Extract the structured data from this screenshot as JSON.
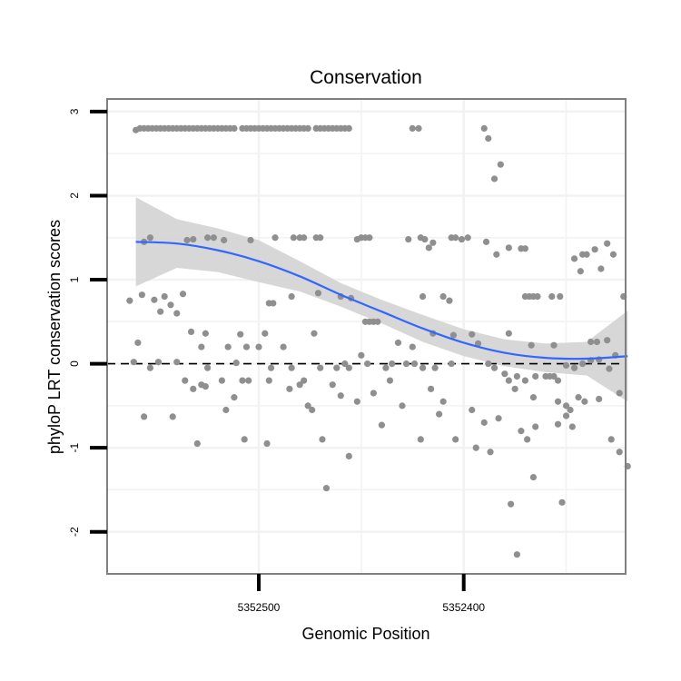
{
  "chart_data": {
    "type": "scatter",
    "title": "Conservation",
    "xlabel": "Genomic Position",
    "ylabel": "phyloP LRT conservation scores",
    "x_reversed": true,
    "xlim": [
      5352574,
      5352321
    ],
    "ylim": [
      -2.5,
      3.15
    ],
    "x_ticks": [
      {
        "value": 5352500,
        "label": "5352500"
      },
      {
        "value": 5352400,
        "label": "5352400"
      }
    ],
    "x_minor_ticks": [
      5352450,
      5352350
    ],
    "y_ticks": [
      {
        "value": 3,
        "label": "3"
      },
      {
        "value": 2,
        "label": "2"
      },
      {
        "value": 1,
        "label": "1"
      },
      {
        "value": 0,
        "label": "0"
      },
      {
        "value": -1,
        "label": "-1"
      },
      {
        "value": -2,
        "label": "-2"
      }
    ],
    "y_minor_ticks": [
      2.5,
      1.5,
      0.5,
      -0.5,
      -1.5
    ],
    "reference_line": {
      "y": 0,
      "style": "dashed",
      "color": "#000000"
    },
    "grid": true,
    "colors": {
      "points": "#8f8f8f",
      "smooth_line": "#3366ff",
      "ribbon": "#d3d3d3",
      "reference": "#000000",
      "panel_border": "#7f7f7f",
      "grid": "#f2f2f2"
    },
    "series": [
      {
        "type": "scatter",
        "points": [
          [
            5352560,
            2.78
          ],
          [
            5352558,
            2.8
          ],
          [
            5352556,
            2.8
          ],
          [
            5352554,
            2.8
          ],
          [
            5352552,
            2.8
          ],
          [
            5352550,
            2.8
          ],
          [
            5352548,
            2.8
          ],
          [
            5352546,
            2.8
          ],
          [
            5352544,
            2.8
          ],
          [
            5352542,
            2.8
          ],
          [
            5352540,
            2.8
          ],
          [
            5352538,
            2.8
          ],
          [
            5352536,
            2.8
          ],
          [
            5352534,
            2.8
          ],
          [
            5352532,
            2.8
          ],
          [
            5352530,
            2.8
          ],
          [
            5352528,
            2.8
          ],
          [
            5352526,
            2.8
          ],
          [
            5352524,
            2.8
          ],
          [
            5352522,
            2.8
          ],
          [
            5352520,
            2.8
          ],
          [
            5352518,
            2.8
          ],
          [
            5352516,
            2.8
          ],
          [
            5352514,
            2.8
          ],
          [
            5352512,
            2.8
          ],
          [
            5352508,
            2.8
          ],
          [
            5352506,
            2.8
          ],
          [
            5352504,
            2.8
          ],
          [
            5352502,
            2.8
          ],
          [
            5352500,
            2.8
          ],
          [
            5352498,
            2.8
          ],
          [
            5352496,
            2.8
          ],
          [
            5352494,
            2.8
          ],
          [
            5352492,
            2.8
          ],
          [
            5352490,
            2.8
          ],
          [
            5352488,
            2.8
          ],
          [
            5352486,
            2.8
          ],
          [
            5352484,
            2.8
          ],
          [
            5352482,
            2.8
          ],
          [
            5352480,
            2.8
          ],
          [
            5352478,
            2.8
          ],
          [
            5352476,
            2.8
          ],
          [
            5352472,
            2.8
          ],
          [
            5352470,
            2.8
          ],
          [
            5352468,
            2.8
          ],
          [
            5352466,
            2.8
          ],
          [
            5352464,
            2.8
          ],
          [
            5352462,
            2.8
          ],
          [
            5352460,
            2.8
          ],
          [
            5352458,
            2.8
          ],
          [
            5352456,
            2.8
          ],
          [
            5352425,
            2.8
          ],
          [
            5352422,
            2.8
          ],
          [
            5352390,
            2.8
          ],
          [
            5352388,
            2.68
          ],
          [
            5352385,
            2.2
          ],
          [
            5352382,
            2.37
          ],
          [
            5352556,
            1.45
          ],
          [
            5352553,
            1.5
          ],
          [
            5352535,
            1.47
          ],
          [
            5352532,
            1.48
          ],
          [
            5352525,
            1.5
          ],
          [
            5352522,
            1.5
          ],
          [
            5352517,
            1.47
          ],
          [
            5352504,
            1.47
          ],
          [
            5352492,
            1.5
          ],
          [
            5352483,
            1.5
          ],
          [
            5352480,
            1.5
          ],
          [
            5352478,
            1.5
          ],
          [
            5352472,
            1.5
          ],
          [
            5352470,
            1.5
          ],
          [
            5352452,
            1.48
          ],
          [
            5352450,
            1.5
          ],
          [
            5352448,
            1.5
          ],
          [
            5352446,
            1.5
          ],
          [
            5352427,
            1.48
          ],
          [
            5352421,
            1.5
          ],
          [
            5352419,
            1.48
          ],
          [
            5352417,
            1.38
          ],
          [
            5352415,
            1.44
          ],
          [
            5352406,
            1.5
          ],
          [
            5352404,
            1.5
          ],
          [
            5352401,
            1.48
          ],
          [
            5352398,
            1.5
          ],
          [
            5352389,
            1.45
          ],
          [
            5352384,
            1.3
          ],
          [
            5352378,
            1.38
          ],
          [
            5352372,
            1.37
          ],
          [
            5352370,
            1.37
          ],
          [
            5352342,
            1.3
          ],
          [
            5352340,
            1.3
          ],
          [
            5352346,
            1.25
          ],
          [
            5352336,
            1.36
          ],
          [
            5352330,
            1.43
          ],
          [
            5352327,
            1.3
          ],
          [
            5352563,
            0.75
          ],
          [
            5352557,
            0.82
          ],
          [
            5352551,
            0.76
          ],
          [
            5352548,
            0.62
          ],
          [
            5352546,
            0.8
          ],
          [
            5352543,
            0.7
          ],
          [
            5352540,
            0.6
          ],
          [
            5352537,
            0.83
          ],
          [
            5352495,
            0.72
          ],
          [
            5352493,
            0.72
          ],
          [
            5352484,
            0.8
          ],
          [
            5352471,
            0.84
          ],
          [
            5352460,
            0.8
          ],
          [
            5352455,
            0.78
          ],
          [
            5352448,
            0.5
          ],
          [
            5352446,
            0.5
          ],
          [
            5352444,
            0.5
          ],
          [
            5352442,
            0.5
          ],
          [
            5352420,
            0.8
          ],
          [
            5352410,
            0.8
          ],
          [
            5352407,
            0.75
          ],
          [
            5352370,
            0.8
          ],
          [
            5352368,
            0.8
          ],
          [
            5352366,
            0.8
          ],
          [
            5352364,
            0.8
          ],
          [
            5352357,
            0.8
          ],
          [
            5352353,
            0.8
          ],
          [
            5352343,
            1.1
          ],
          [
            5352333,
            1.13
          ],
          [
            5352322,
            0.8
          ],
          [
            5352559,
            0.25
          ],
          [
            5352533,
            0.38
          ],
          [
            5352528,
            0.2
          ],
          [
            5352526,
            0.36
          ],
          [
            5352515,
            0.2
          ],
          [
            5352509,
            0.35
          ],
          [
            5352506,
            0.2
          ],
          [
            5352500,
            0.2
          ],
          [
            5352497,
            0.36
          ],
          [
            5352488,
            0.2
          ],
          [
            5352473,
            0.36
          ],
          [
            5352450,
            0.1
          ],
          [
            5352432,
            0.25
          ],
          [
            5352425,
            0.2
          ],
          [
            5352415,
            0.36
          ],
          [
            5352405,
            0.34
          ],
          [
            5352396,
            0.35
          ],
          [
            5352393,
            0.24
          ],
          [
            5352378,
            0.36
          ],
          [
            5352367,
            0.22
          ],
          [
            5352356,
            0.22
          ],
          [
            5352338,
            0.26
          ],
          [
            5352335,
            0.26
          ],
          [
            5352330,
            0.28
          ],
          [
            5352326,
            0.1
          ],
          [
            5352561,
            0.02
          ],
          [
            5352553,
            -0.05
          ],
          [
            5352549,
            0.02
          ],
          [
            5352540,
            0.02
          ],
          [
            5352525,
            -0.05
          ],
          [
            5352511,
            0.01
          ],
          [
            5352505,
            -0.2
          ],
          [
            5352494,
            -0.05
          ],
          [
            5352484,
            -0.05
          ],
          [
            5352478,
            -0.2
          ],
          [
            5352470,
            -0.05
          ],
          [
            5352462,
            -0.05
          ],
          [
            5352458,
            0.0
          ],
          [
            5352456,
            -0.05
          ],
          [
            5352447,
            0.0
          ],
          [
            5352438,
            -0.05
          ],
          [
            5352435,
            0.0
          ],
          [
            5352428,
            0.0
          ],
          [
            5352424,
            0.0
          ],
          [
            5352420,
            -0.05
          ],
          [
            5352414,
            -0.05
          ],
          [
            5352406,
            0.0
          ],
          [
            5352388,
            0.0
          ],
          [
            5352385,
            -0.05
          ],
          [
            5352380,
            -0.12
          ],
          [
            5352374,
            -0.15
          ],
          [
            5352370,
            -0.2
          ],
          [
            5352365,
            -0.15
          ],
          [
            5352360,
            -0.15
          ],
          [
            5352358,
            -0.15
          ],
          [
            5352356,
            -0.15
          ],
          [
            5352354,
            -0.2
          ],
          [
            5352350,
            -0.02
          ],
          [
            5352346,
            -0.05
          ],
          [
            5352342,
            0.0
          ],
          [
            5352338,
            0.04
          ],
          [
            5352334,
            0.05
          ],
          [
            5352329,
            -0.06
          ],
          [
            5352536,
            -0.2
          ],
          [
            5352532,
            -0.3
          ],
          [
            5352528,
            -0.25
          ],
          [
            5352526,
            -0.27
          ],
          [
            5352518,
            -0.2
          ],
          [
            5352512,
            -0.4
          ],
          [
            5352508,
            -0.2
          ],
          [
            5352495,
            -0.2
          ],
          [
            5352485,
            -0.3
          ],
          [
            5352480,
            -0.25
          ],
          [
            5352476,
            -0.5
          ],
          [
            5352464,
            -0.25
          ],
          [
            5352460,
            -0.38
          ],
          [
            5352452,
            -0.45
          ],
          [
            5352444,
            -0.35
          ],
          [
            5352436,
            -0.2
          ],
          [
            5352416,
            -0.3
          ],
          [
            5352410,
            -0.45
          ],
          [
            5352396,
            -0.55
          ],
          [
            5352378,
            -0.2
          ],
          [
            5352375,
            -0.3
          ],
          [
            5352366,
            -0.4
          ],
          [
            5352354,
            -0.45
          ],
          [
            5352350,
            -0.5
          ],
          [
            5352348,
            -0.55
          ],
          [
            5352344,
            -0.4
          ],
          [
            5352341,
            -0.45
          ],
          [
            5352334,
            -0.42
          ],
          [
            5352324,
            -0.35
          ],
          [
            5352556,
            -0.63
          ],
          [
            5352542,
            -0.63
          ],
          [
            5352530,
            -0.95
          ],
          [
            5352516,
            -0.55
          ],
          [
            5352507,
            -0.9
          ],
          [
            5352496,
            -0.95
          ],
          [
            5352474,
            -0.55
          ],
          [
            5352469,
            -0.9
          ],
          [
            5352440,
            -0.73
          ],
          [
            5352430,
            -0.5
          ],
          [
            5352421,
            -0.9
          ],
          [
            5352412,
            -0.6
          ],
          [
            5352404,
            -0.9
          ],
          [
            5352394,
            -1.0
          ],
          [
            5352390,
            -0.7
          ],
          [
            5352383,
            -0.65
          ],
          [
            5352372,
            -0.8
          ],
          [
            5352369,
            -0.9
          ],
          [
            5352365,
            -0.75
          ],
          [
            5352354,
            -0.72
          ],
          [
            5352350,
            -0.62
          ],
          [
            5352347,
            -0.75
          ],
          [
            5352328,
            -0.9
          ],
          [
            5352324,
            -1.05
          ],
          [
            5352320,
            -1.22
          ],
          [
            5352467,
            -1.48
          ],
          [
            5352456,
            -1.1
          ],
          [
            5352377,
            -1.67
          ],
          [
            5352387,
            -1.05
          ],
          [
            5352366,
            -1.35
          ],
          [
            5352352,
            -1.65
          ],
          [
            5352374,
            -2.27
          ]
        ]
      }
    ],
    "smooth": {
      "method": "loess",
      "x": [
        5352560,
        5352540,
        5352520,
        5352500,
        5352480,
        5352460,
        5352440,
        5352420,
        5352400,
        5352380,
        5352360,
        5352340,
        5352320
      ],
      "y": [
        1.45,
        1.43,
        1.35,
        1.22,
        1.04,
        0.82,
        0.62,
        0.42,
        0.25,
        0.13,
        0.07,
        0.06,
        0.09
      ],
      "lower": [
        0.92,
        1.14,
        1.09,
        0.97,
        0.86,
        0.68,
        0.48,
        0.26,
        0.09,
        -0.03,
        -0.1,
        -0.14,
        -0.45
      ],
      "upper": [
        1.98,
        1.72,
        1.61,
        1.47,
        1.22,
        0.96,
        0.76,
        0.58,
        0.41,
        0.29,
        0.24,
        0.26,
        0.63
      ]
    }
  }
}
